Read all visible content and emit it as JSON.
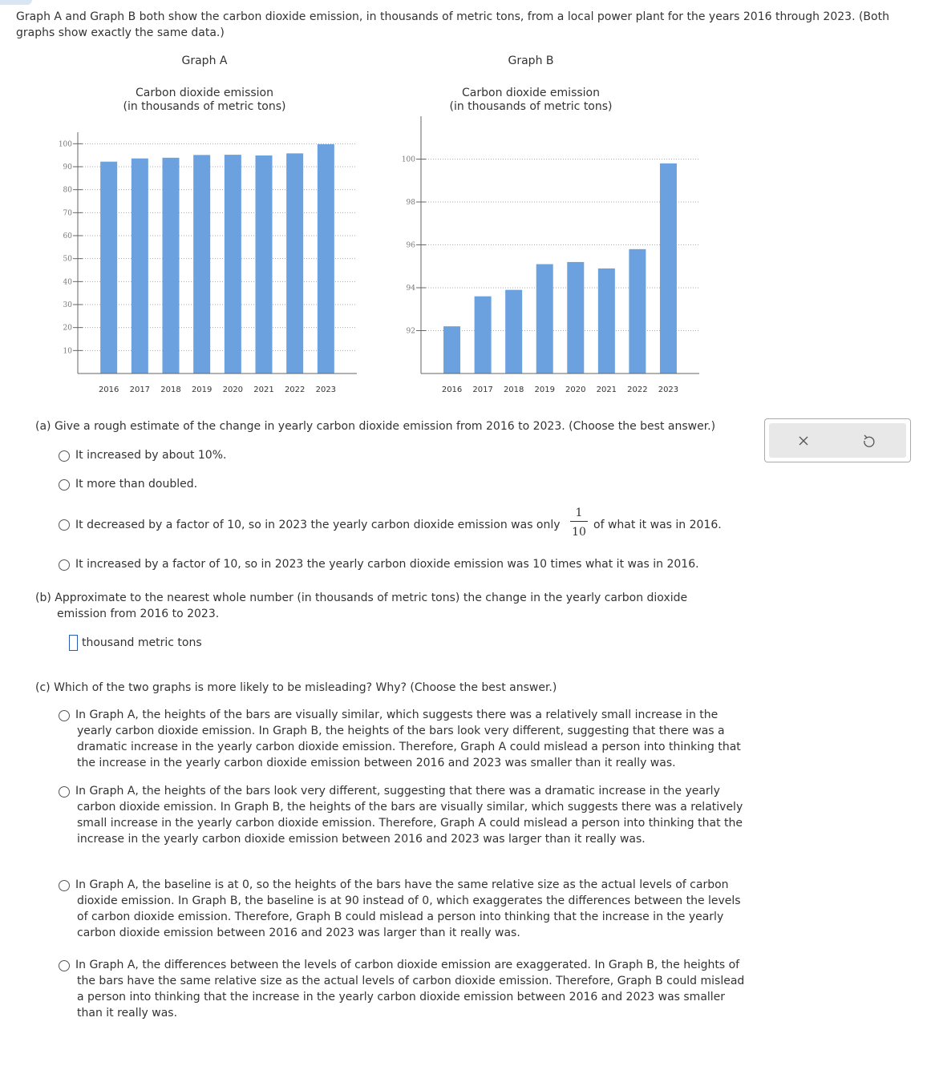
{
  "intro": "Graph A and Graph B both show the carbon dioxide emission, in thousands of metric tons, from a local power plant for the years 2016 through 2023. (Both graphs show exactly the same data.)",
  "chart_data": [
    {
      "type": "bar",
      "heading": "Graph A",
      "title": "Carbon dioxide emission",
      "subtitle": "(in thousands of metric tons)",
      "categories": [
        "2016",
        "2017",
        "2018",
        "2019",
        "2020",
        "2021",
        "2022",
        "2023"
      ],
      "values": [
        92.2,
        93.6,
        93.9,
        95.1,
        95.2,
        94.9,
        95.8,
        99.8
      ],
      "color": "#6aa1de",
      "ylim": [
        0,
        105
      ],
      "yticks": [
        10,
        20,
        30,
        40,
        50,
        60,
        70,
        80,
        90,
        100
      ],
      "grid": true
    },
    {
      "type": "bar",
      "heading": "Graph B",
      "title": "Carbon dioxide emission",
      "subtitle": "(in thousands of metric tons)",
      "categories": [
        "2016",
        "2017",
        "2018",
        "2019",
        "2020",
        "2021",
        "2022",
        "2023"
      ],
      "values": [
        92.2,
        93.6,
        93.9,
        95.1,
        95.2,
        94.9,
        95.8,
        99.8
      ],
      "color": "#6aa1de",
      "ylim": [
        90,
        102
      ],
      "yticks": [
        92,
        94,
        96,
        98,
        100
      ],
      "grid": true
    }
  ],
  "questions": {
    "a": {
      "prompt": "(a) Give a rough estimate of the change in yearly carbon dioxide emission from 2016 to 2023. (Choose the best answer.)",
      "options": [
        {
          "text": "It increased by about 10%."
        },
        {
          "text": "It more than doubled."
        },
        {
          "text": "It decreased by a factor of 10, so in 2023 the yearly carbon dioxide emission was only",
          "numerator": "1",
          "denominator": "10",
          "after": "of what it was in 2016."
        },
        {
          "text": "It increased by a factor of 10, so in 2023 the yearly carbon dioxide emission was 10 times what it was in 2016."
        }
      ]
    },
    "b": {
      "prompt": "(b) Approximate to the nearest whole number (in thousands of metric tons) the change in the yearly carbon dioxide emission from 2016 to 2023.",
      "unit": "thousand metric tons"
    },
    "c": {
      "prompt": "(c) Which of the two graphs is more likely to be misleading? Why? (Choose the best answer.)",
      "options": [
        "In Graph A, the heights of the bars are visually similar, which suggests there was a relatively small increase in the yearly carbon dioxide emission. In Graph B, the heights of the bars look very different, suggesting that there was a dramatic increase in the yearly carbon dioxide emission. Therefore, Graph A could mislead a person into thinking that the increase in the yearly carbon dioxide emission between 2016 and 2023 was smaller than it really was.",
        "In Graph A, the heights of the bars look very different, suggesting that there was a dramatic increase in the yearly carbon dioxide emission. In Graph B, the heights of the bars are visually similar, which suggests there was a relatively small increase in the yearly carbon dioxide emission. Therefore, Graph A could mislead a person into thinking that the increase in the yearly carbon dioxide emission between 2016 and 2023 was larger than it really was.",
        "In Graph A, the baseline is at 0, so the heights of the bars have the same relative size as the actual levels of carbon dioxide emission. In Graph B, the baseline is at 90 instead of 0, which exaggerates the differences between the levels of carbon dioxide emission. Therefore, Graph B could mislead a person into thinking that the increase in the yearly carbon dioxide emission between 2016 and 2023 was larger than it really was.",
        "In Graph A, the differences between the levels of carbon dioxide emission are exaggerated. In Graph B, the heights of the bars have the same relative size as the actual levels of carbon dioxide emission. Therefore, Graph B could mislead a person into thinking that the increase in the yearly carbon dioxide emission between 2016 and 2023 was smaller than it really was."
      ]
    }
  }
}
